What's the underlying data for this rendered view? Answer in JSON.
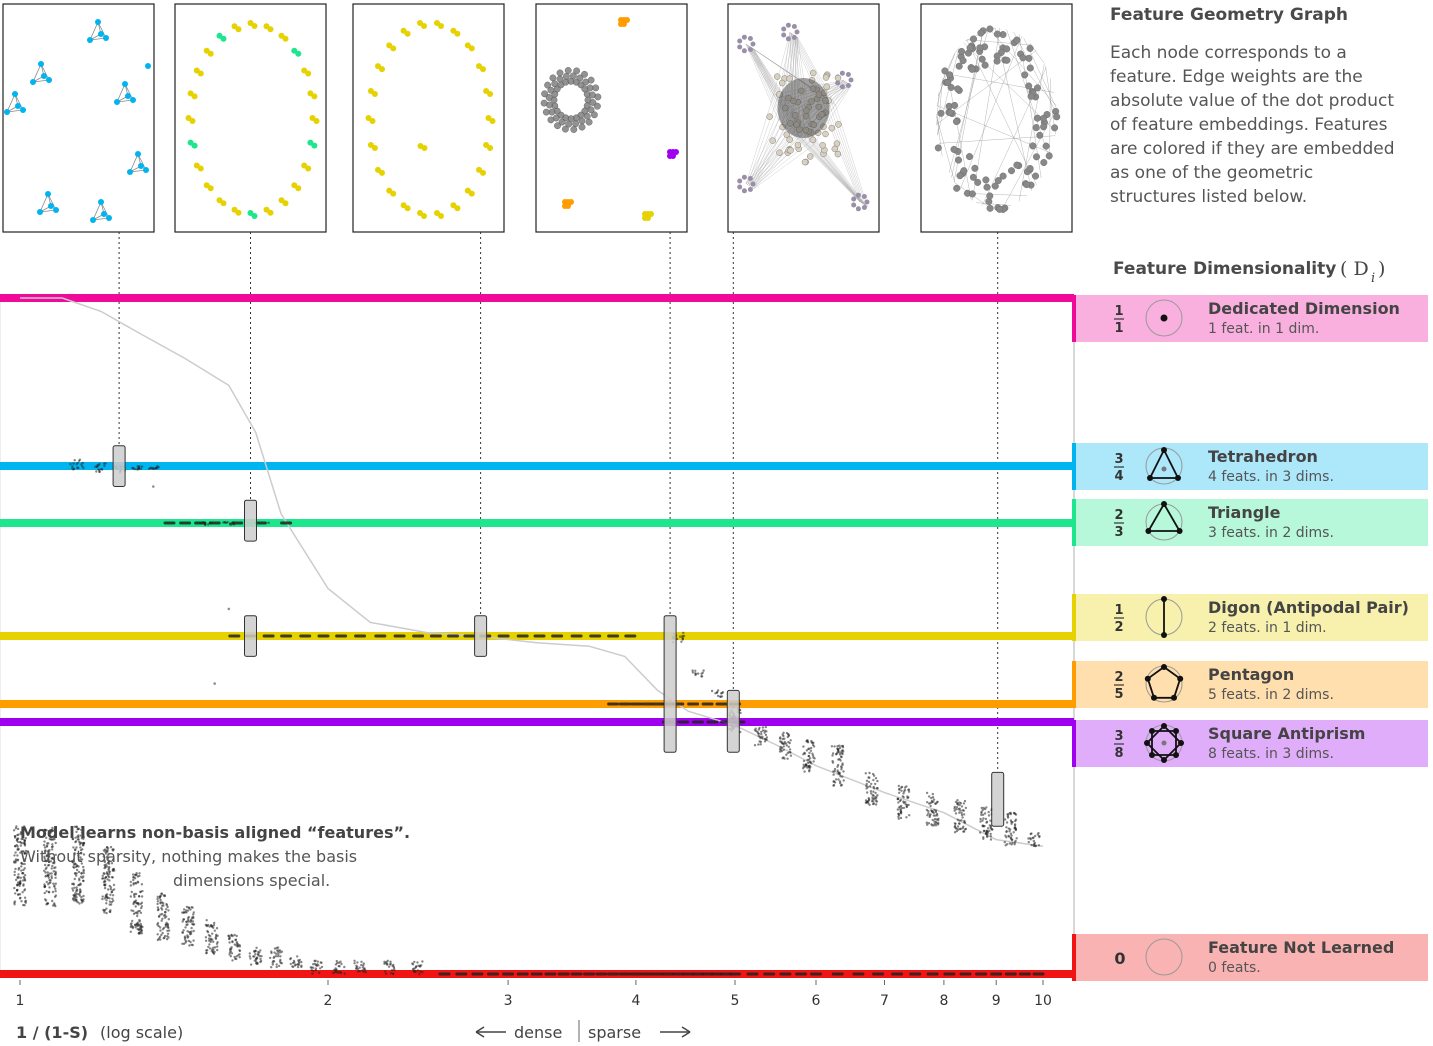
{
  "header": {
    "graph_title": "Feature Geometry Graph",
    "graph_description": [
      "Each node corresponds to a",
      "feature. Edge weights are the",
      "absolute value of the dot product",
      "of feature embeddings. Features",
      "are colored if they are embedded",
      "as one of the geometric",
      "structures listed below."
    ],
    "dimensionality_title": "Feature Dimensionality",
    "dimensionality_symbol": "( D",
    "dimensionality_subscript": "i",
    "dimensionality_close": ")"
  },
  "annotation": {
    "line1": "Model learns non-basis aligned “features”.",
    "line2": "Without sparsity, nothing makes the basis",
    "line3": "dimensions special."
  },
  "colors": {
    "dedicated": "#f00a9a",
    "tetrahedron": "#00b4f0",
    "triangle": "#1ee68c",
    "digon": "#e6d200",
    "pentagon": "#ff9c00",
    "antiprism": "#a000f0",
    "not_learned": "#f01414",
    "points": "#222222",
    "curve": "#cccccc"
  },
  "chart_data": {
    "type": "scatter",
    "xlabel": "1 / (1-S)",
    "xlabel_note": "(log scale)",
    "x_scale": "log",
    "xlim": [
      1,
      10
    ],
    "x_ticks": [
      1,
      2,
      3,
      4,
      5,
      6,
      7,
      8,
      9,
      10
    ],
    "direction_left": "dense",
    "direction_right": "sparse",
    "ylabel": "Feature Dimensionality (D_i)",
    "ylim": [
      0,
      1
    ],
    "grid": false,
    "legend_placement": "right",
    "levels": [
      {
        "key": "dedicated",
        "name": "Dedicated Dimension",
        "sub": "1 feat. in 1 dim.",
        "num": "1",
        "den": "1",
        "value": 1.0,
        "icon": "point-in-circle-icon"
      },
      {
        "key": "tetrahedron",
        "name": "Tetrahedron",
        "sub": "4 feats. in 3 dims.",
        "num": "3",
        "den": "4",
        "value": 0.75,
        "icon": "tetrahedron-icon"
      },
      {
        "key": "triangle",
        "name": "Triangle",
        "sub": "3 feats. in 2 dims.",
        "num": "2",
        "den": "3",
        "value": 0.6667,
        "icon": "triangle-icon"
      },
      {
        "key": "digon",
        "name": "Digon (Antipodal Pair)",
        "sub": "2 feats. in 1 dim.",
        "num": "1",
        "den": "2",
        "value": 0.5,
        "icon": "digon-icon"
      },
      {
        "key": "pentagon",
        "name": "Pentagon",
        "sub": "5 feats. in 2 dims.",
        "num": "2",
        "den": "5",
        "value": 0.4,
        "icon": "pentagon-icon"
      },
      {
        "key": "antiprism",
        "name": "Square Antiprism",
        "sub": "8 feats. in 3 dims.",
        "num": "3",
        "den": "8",
        "value": 0.375,
        "icon": "square-antiprism-icon"
      },
      {
        "key": "not_learned",
        "name": "Feature Not Learned",
        "sub": "0 feats.",
        "num": "0",
        "den": "",
        "value": 0.0,
        "icon": "empty-circle-icon"
      }
    ],
    "curve": {
      "name": "",
      "x": [
        1.0,
        1.1,
        1.2,
        1.3,
        1.45,
        1.6,
        1.7,
        1.8,
        2.0,
        2.2,
        2.5,
        2.8,
        3.2,
        3.6,
        3.9,
        4.2,
        4.5,
        5.0,
        5.5,
        6.0,
        7.0,
        8.0,
        9.0,
        10.0
      ],
      "y": [
        1.0,
        1.0,
        0.98,
        0.95,
        0.91,
        0.87,
        0.8,
        0.68,
        0.57,
        0.52,
        0.505,
        0.5,
        0.49,
        0.485,
        0.47,
        0.42,
        0.39,
        0.37,
        0.34,
        0.31,
        0.27,
        0.24,
        0.2,
        0.19
      ]
    },
    "point_clusters": [
      {
        "x": 1.0,
        "y_range": [
          0.1,
          0.22
        ]
      },
      {
        "x": 1.07,
        "y_range": [
          0.1,
          0.22
        ]
      },
      {
        "x": 1.14,
        "y_range": [
          0.1,
          0.22
        ]
      },
      {
        "x": 1.22,
        "y_range": [
          0.09,
          0.19
        ]
      },
      {
        "x": 1.3,
        "y_range": [
          0.06,
          0.15
        ]
      },
      {
        "x": 1.38,
        "y_range": [
          0.05,
          0.12
        ]
      },
      {
        "x": 1.46,
        "y_range": [
          0.04,
          0.1
        ]
      },
      {
        "x": 1.54,
        "y_range": [
          0.03,
          0.08
        ]
      },
      {
        "x": 1.62,
        "y_range": [
          0.02,
          0.06
        ]
      },
      {
        "x": 1.7,
        "y_range": [
          0.01,
          0.04
        ]
      },
      {
        "x": 1.78,
        "y_range": [
          0.01,
          0.04
        ]
      },
      {
        "x": 1.86,
        "y_range": [
          0.01,
          0.03
        ]
      },
      {
        "x": 1.95,
        "y_range": [
          0.0,
          0.02
        ]
      },
      {
        "x": 2.05,
        "y_range": [
          0.0,
          0.02
        ]
      },
      {
        "x": 2.15,
        "y_range": [
          0.0,
          0.02
        ]
      },
      {
        "x": 2.3,
        "y_range": [
          0.0,
          0.02
        ]
      },
      {
        "x": 2.45,
        "y_range": [
          0.0,
          0.02
        ]
      },
      {
        "x": 1.14,
        "y_range": [
          0.745,
          0.76
        ]
      },
      {
        "x": 1.2,
        "y_range": [
          0.74,
          0.755
        ]
      },
      {
        "x": 1.25,
        "y_range": [
          0.74,
          0.75
        ]
      },
      {
        "x": 1.3,
        "y_range": [
          0.745,
          0.75
        ]
      },
      {
        "x": 1.35,
        "y_range": [
          0.745,
          0.75
        ]
      },
      {
        "x": 1.52,
        "y_range": [
          0.664,
          0.668
        ]
      },
      {
        "x": 1.6,
        "y_range": [
          0.664,
          0.668
        ]
      },
      {
        "x": 4.4,
        "y_range": [
          0.49,
          0.505
        ]
      },
      {
        "x": 4.6,
        "y_range": [
          0.44,
          0.45
        ]
      },
      {
        "x": 4.8,
        "y_range": [
          0.41,
          0.42
        ]
      },
      {
        "x": 5.0,
        "y_range": [
          0.36,
          0.4
        ]
      },
      {
        "x": 5.3,
        "y_range": [
          0.34,
          0.37
        ]
      },
      {
        "x": 5.6,
        "y_range": [
          0.32,
          0.36
        ]
      },
      {
        "x": 5.9,
        "y_range": [
          0.3,
          0.35
        ]
      },
      {
        "x": 6.3,
        "y_range": [
          0.28,
          0.34
        ]
      },
      {
        "x": 6.8,
        "y_range": [
          0.25,
          0.3
        ]
      },
      {
        "x": 7.3,
        "y_range": [
          0.23,
          0.28
        ]
      },
      {
        "x": 7.8,
        "y_range": [
          0.22,
          0.27
        ]
      },
      {
        "x": 8.3,
        "y_range": [
          0.21,
          0.26
        ]
      },
      {
        "x": 8.8,
        "y_range": [
          0.2,
          0.25
        ]
      },
      {
        "x": 9.3,
        "y_range": [
          0.19,
          0.24
        ]
      },
      {
        "x": 9.8,
        "y_range": [
          0.19,
          0.21
        ]
      }
    ],
    "level_marks": [
      {
        "level": "digon",
        "x": [
          1.62,
          1.68,
          1.75,
          1.82,
          1.9,
          1.98,
          2.06,
          2.15,
          2.25,
          2.35,
          2.45,
          2.55,
          2.65,
          2.75,
          2.85,
          2.97,
          3.1,
          3.22,
          3.35,
          3.5,
          3.65,
          3.8,
          3.95
        ]
      },
      {
        "level": "not_learned",
        "x": [
          2.6,
          2.7,
          2.8,
          2.9,
          3.0,
          3.1,
          3.2,
          3.3,
          3.4,
          3.5,
          3.6,
          3.7,
          3.8,
          3.9,
          4.0,
          4.1,
          4.2,
          4.3,
          4.4,
          4.5,
          4.6,
          4.7,
          4.8,
          4.9,
          5.0,
          5.2,
          5.4,
          5.6,
          5.8,
          6.0,
          6.3,
          6.6,
          6.9,
          7.2,
          7.5,
          7.8,
          8.1,
          8.4,
          8.7,
          9.0,
          9.3,
          9.6,
          9.9
        ]
      },
      {
        "level": "triangle",
        "x": [
          1.4,
          1.45,
          1.5,
          1.55,
          1.63,
          1.72,
          1.82
        ]
      },
      {
        "level": "pentagon",
        "x": [
          3.8,
          3.9,
          4.0,
          4.1,
          4.2,
          4.3,
          4.4,
          4.55,
          4.7,
          4.85,
          5.0
        ]
      },
      {
        "level": "antiprism",
        "x": [
          4.3,
          4.45,
          4.6,
          4.75,
          4.9,
          5.05
        ]
      }
    ],
    "highlights": [
      {
        "x": 1.25,
        "y_from": 0.72,
        "y_to": 0.78,
        "panel": 0
      },
      {
        "x": 1.68,
        "y_from": 0.64,
        "y_to": 0.7,
        "panel": 1
      },
      {
        "x": 1.68,
        "y_from": 0.47,
        "y_to": 0.53,
        "panel": 1
      },
      {
        "x": 2.82,
        "y_from": 0.47,
        "y_to": 0.53,
        "panel": 2
      },
      {
        "x": 4.32,
        "y_from": 0.33,
        "y_to": 0.53,
        "panel": 3
      },
      {
        "x": 4.98,
        "y_from": 0.33,
        "y_to": 0.42,
        "panel": 4
      },
      {
        "x": 9.03,
        "y_from": 0.22,
        "y_to": 0.3,
        "panel": 5
      }
    ],
    "panels": [
      {
        "name": "panel-tetrahedra",
        "kind": "clusters",
        "color": "#00b4f0",
        "cluster_size": 4,
        "count": 7
      },
      {
        "name": "panel-mixed",
        "kind": "mixed",
        "colors": [
          "#e6d200",
          "#1ee68c"
        ]
      },
      {
        "name": "panel-digons",
        "kind": "ring-pairs",
        "color": "#e6d200"
      },
      {
        "name": "panel-ring",
        "kind": "gray-ring",
        "accents": [
          "#ff9c00",
          "#a000f0",
          "#e6d200"
        ]
      },
      {
        "name": "panel-star",
        "kind": "gray-star",
        "color": "#9a8fa8"
      },
      {
        "name": "panel-dense",
        "kind": "gray-dense",
        "color": "#888888"
      }
    ]
  }
}
